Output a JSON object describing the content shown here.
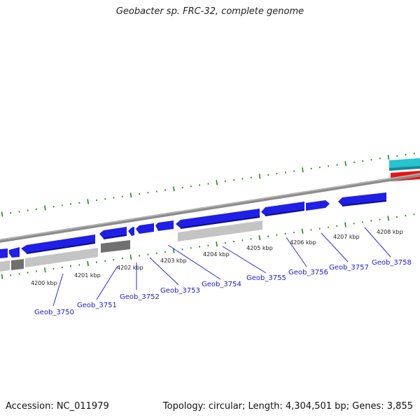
{
  "title": "Geobacter sp. FRC-32, complete genome",
  "footer": {
    "accession": "Accession: NC_011979",
    "summary": "Topology: circular; Length: 4,304,501 bp; Genes: 3,855"
  },
  "colors": {
    "forward_gene": "#1f1fe6",
    "reverse_gene": "#1f1fe6",
    "backbone": "#8c8c8c",
    "tick": "#1b8a1b",
    "light_feature": "#c4c4c4",
    "dark_feature": "#707070",
    "cyan_feature": "#27c3cf",
    "red_feature": "#ee1111",
    "gene_label": "#1a1acc"
  },
  "kbp_labels": [
    "4200 kbp",
    "4201 kbp",
    "4202 kbp",
    "4203 kbp",
    "4204 kbp",
    "4205 kbp",
    "4206 kbp",
    "4207 kbp",
    "4208 kbp"
  ],
  "gene_labels": [
    "Geob_3750",
    "Geob_3751",
    "Geob_3752",
    "Geob_3753",
    "Geob_3754",
    "Geob_3755",
    "Geob_3756",
    "Geob_3757",
    "Geob_3758"
  ]
}
